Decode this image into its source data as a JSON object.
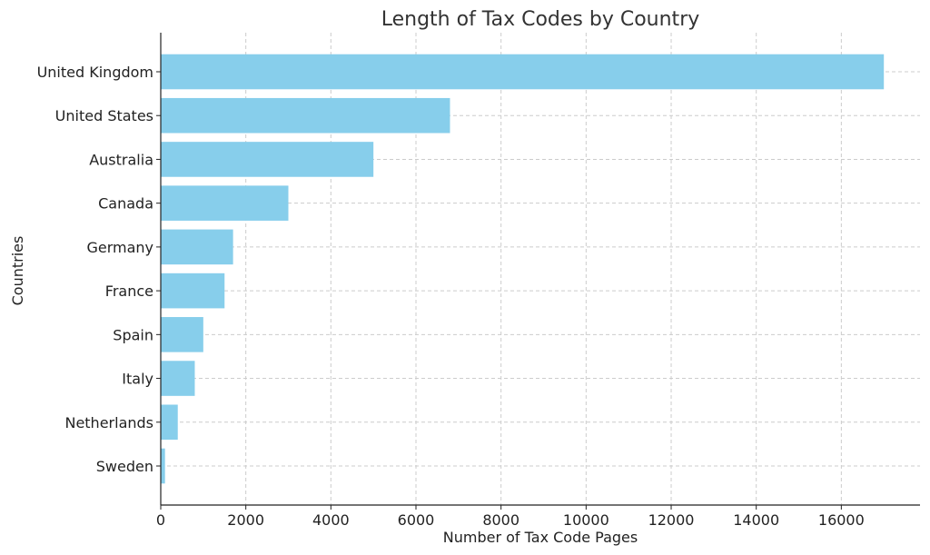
{
  "chart_data": {
    "type": "bar",
    "orientation": "horizontal",
    "title": "Length of Tax Codes by Country",
    "xlabel": "Number of Tax Code Pages",
    "ylabel": "Countries",
    "categories": [
      "United Kingdom",
      "United States",
      "Australia",
      "Canada",
      "Germany",
      "France",
      "Spain",
      "Italy",
      "Netherlands",
      "Sweden"
    ],
    "values": [
      17000,
      6800,
      5000,
      3000,
      1700,
      1500,
      1000,
      800,
      400,
      100
    ],
    "xlim": [
      0,
      17850
    ],
    "xticks": [
      0,
      2000,
      4000,
      6000,
      8000,
      10000,
      12000,
      14000,
      16000
    ],
    "grid": true,
    "bar_color": "#87ceeb"
  }
}
